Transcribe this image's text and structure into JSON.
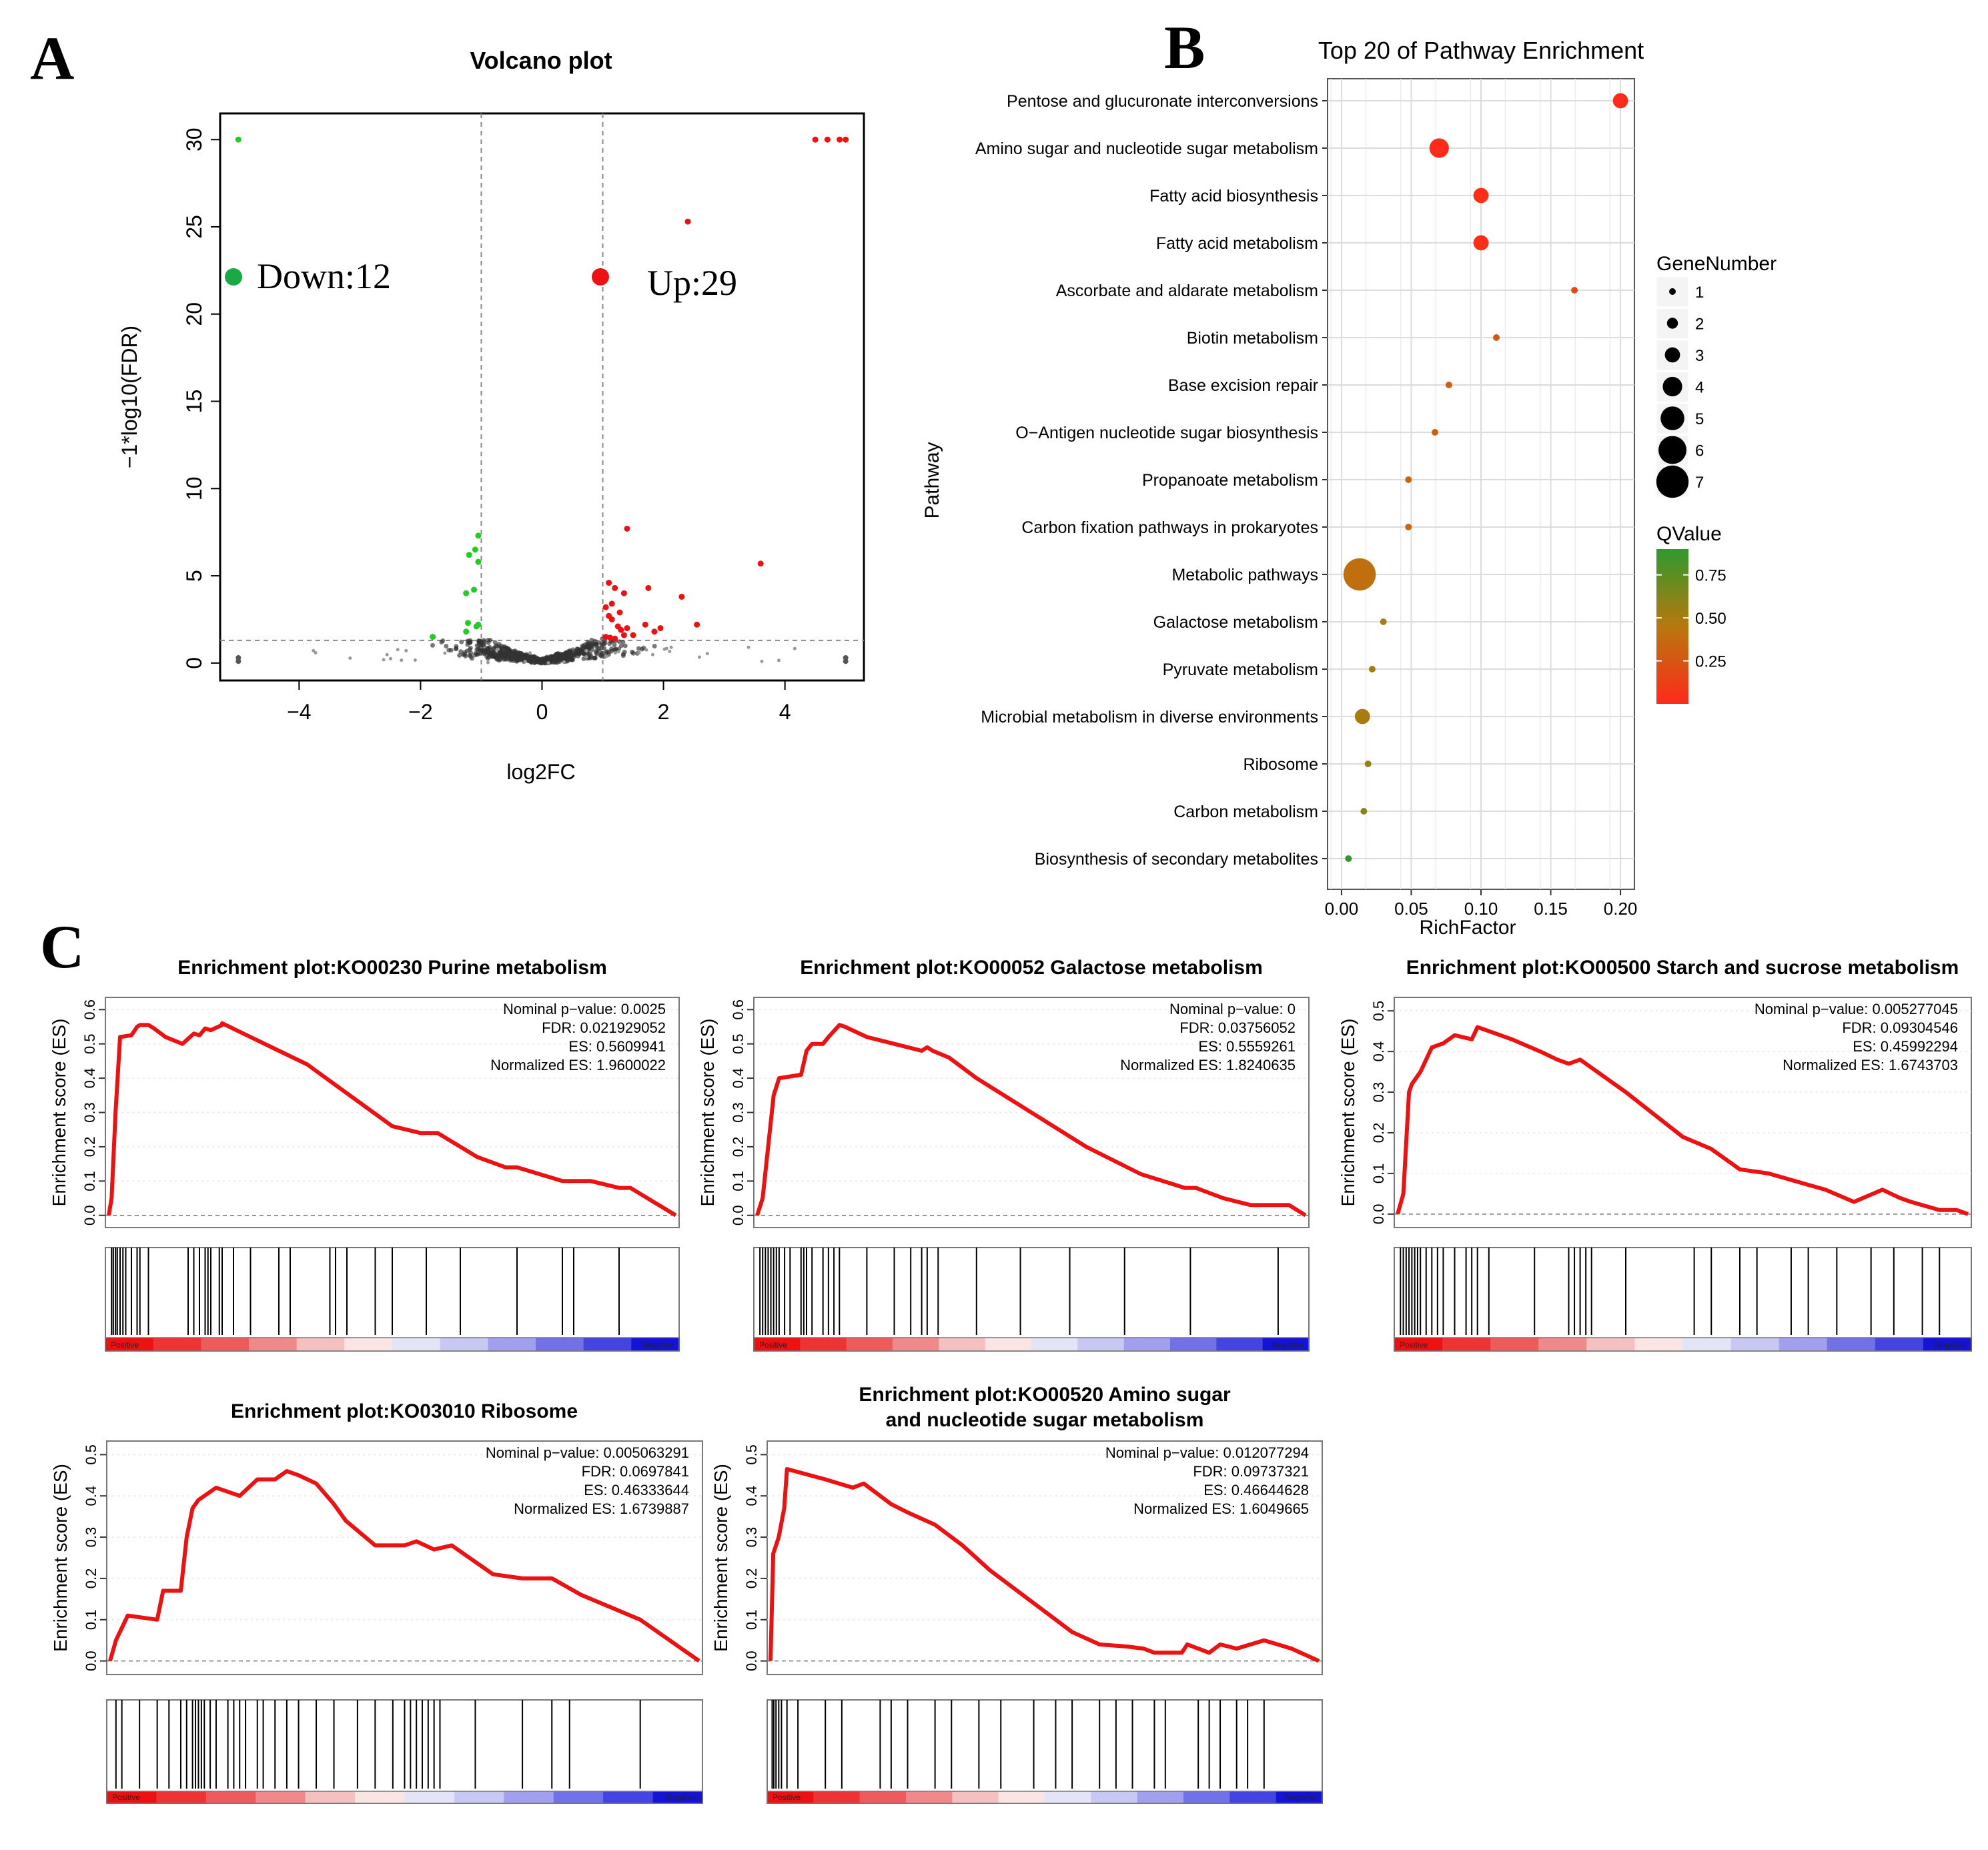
{
  "panels": {
    "A": {
      "letter": "A",
      "title": "Volcano plot",
      "xlabel": "log2FC",
      "ylabel": "−1*log10(FDR)",
      "xticks": [
        "−4",
        "−2",
        "0",
        "2",
        "4"
      ],
      "yticks": [
        "0",
        "5",
        "10",
        "15",
        "20",
        "25",
        "30"
      ],
      "legend": {
        "down": "Down:12",
        "up": "Up:29"
      }
    },
    "B": {
      "letter": "B",
      "title": "Top 20 of Pathway Enrichment",
      "xlabel": "RichFactor",
      "ylabel": "Pathway",
      "xticks": [
        "0.00",
        "0.05",
        "0.10",
        "0.15",
        "0.20"
      ],
      "size_legend_title": "GeneNumber",
      "size_legend_values": [
        "1",
        "2",
        "3",
        "4",
        "5",
        "6",
        "7"
      ],
      "color_legend_title": "QValue",
      "color_legend_ticks": [
        "0.75",
        "0.50",
        "0.25"
      ]
    },
    "C": {
      "letter": "C",
      "ylabel": "Enrichment score (ES)",
      "bar_left": "Positive",
      "bar_right": "Negative"
    }
  },
  "chart_data": [
    {
      "type": "scatter",
      "title": "Volcano plot",
      "xlabel": "log2FC",
      "ylabel": "−1*log10(FDR)",
      "xlim": [
        -5.3,
        5.3
      ],
      "ylim": [
        -1,
        31.5
      ],
      "thresholds": {
        "log2FC": [
          -1,
          1
        ],
        "neg_log10_fdr": 1.3
      },
      "colors": {
        "down": "#22cc22",
        "up": "#ee1111",
        "ns": "#333333",
        "threshold_line": "#888888"
      },
      "counts": {
        "down": 12,
        "up": 29
      },
      "series": [
        {
          "name": "Down",
          "x": [
            -5.0,
            -1.05,
            -1.1,
            -1.2,
            -1.05,
            -1.12,
            -1.25,
            -1.22,
            -1.05,
            -1.08,
            -1.25,
            -1.8
          ],
          "y": [
            30.0,
            7.3,
            6.5,
            6.2,
            5.8,
            4.2,
            4.0,
            2.3,
            2.2,
            2.1,
            1.8,
            1.5
          ]
        },
        {
          "name": "Up",
          "x": [
            4.5,
            4.7,
            4.9,
            5.0,
            2.4,
            1.4,
            3.6,
            1.1,
            1.2,
            1.35,
            1.75,
            2.3,
            1.05,
            1.1,
            1.15,
            1.25,
            1.3,
            1.35,
            1.7,
            1.85,
            2.55,
            1.05,
            1.12,
            1.2,
            1.15,
            1.28,
            1.4,
            1.5,
            1.95
          ],
          "y": [
            30.0,
            30.0,
            30.0,
            30.0,
            25.3,
            7.7,
            5.7,
            4.6,
            4.3,
            4.0,
            4.3,
            3.8,
            3.2,
            2.7,
            2.5,
            2.1,
            1.9,
            1.6,
            2.2,
            1.8,
            2.2,
            1.5,
            1.45,
            1.4,
            3.4,
            2.9,
            2.0,
            1.6,
            2.0
          ]
        }
      ]
    },
    {
      "type": "scatter",
      "title": "Top 20 of Pathway Enrichment",
      "xlabel": "RichFactor",
      "ylabel": "Pathway",
      "xlim": [
        -0.01,
        0.21
      ],
      "xticks": [
        0.0,
        0.05,
        0.1,
        0.15,
        0.2
      ],
      "qvalue_range": [
        0.0,
        0.9
      ],
      "categories": [
        "Pentose and glucuronate interconversions",
        "Amino sugar and nucleotide sugar metabolism",
        "Fatty acid biosynthesis",
        "Fatty acid metabolism",
        "Ascorbate and aldarate metabolism",
        "Biotin metabolism",
        "Base excision repair",
        "O−Antigen nucleotide sugar biosynthesis",
        "Propanoate metabolism",
        "Carbon fixation pathways in prokaryotes",
        "Metabolic pathways",
        "Galactose metabolism",
        "Pyruvate metabolism",
        "Microbial metabolism in diverse environments",
        "Ribosome",
        "Carbon metabolism",
        "Biosynthesis of secondary metabolites"
      ],
      "rich_factor": [
        0.2,
        0.07,
        0.1,
        0.1,
        0.167,
        0.111,
        0.077,
        0.067,
        0.048,
        0.048,
        0.013,
        0.03,
        0.022,
        0.015,
        0.019,
        0.016,
        0.005
      ],
      "gene_number": [
        3,
        4,
        3,
        3,
        1,
        1,
        1,
        1,
        1,
        1,
        7,
        1,
        1,
        3,
        1,
        1,
        1
      ],
      "qvalue": [
        0.01,
        0.01,
        0.02,
        0.02,
        0.2,
        0.25,
        0.3,
        0.3,
        0.35,
        0.35,
        0.4,
        0.5,
        0.5,
        0.5,
        0.55,
        0.6,
        0.9
      ],
      "size_legend": [
        1,
        2,
        3,
        4,
        5,
        6,
        7
      ],
      "color_scale": {
        "low": "#ff2a1a",
        "mid": "#b8780e",
        "high": "#2e9a2e"
      }
    },
    {
      "type": "line",
      "title": "Enrichment plot:KO00230 Purine metabolism",
      "ylabel": "Enrichment score (ES)",
      "ylim": [
        -0.02,
        0.62
      ],
      "yticks": [
        0.0,
        0.1,
        0.2,
        0.3,
        0.4,
        0.5,
        0.6
      ],
      "stats": [
        "Nominal p−value: 0.0025",
        "FDR: 0.021929052",
        "ES: 0.5609941",
        "Normalized ES: 1.9600022"
      ],
      "x": [
        0,
        0.005,
        0.012,
        0.02,
        0.04,
        0.05,
        0.055,
        0.07,
        0.08,
        0.1,
        0.13,
        0.15,
        0.16,
        0.17,
        0.18,
        0.2,
        0.2,
        0.25,
        0.3,
        0.35,
        0.4,
        0.5,
        0.55,
        0.58,
        0.65,
        0.7,
        0.72,
        0.8,
        0.83,
        0.85,
        0.9,
        0.92,
        1.0
      ],
      "y": [
        0,
        0.05,
        0.3,
        0.52,
        0.525,
        0.55,
        0.555,
        0.555,
        0.545,
        0.52,
        0.5,
        0.53,
        0.525,
        0.545,
        0.54,
        0.555,
        0.56,
        0.52,
        0.48,
        0.44,
        0.38,
        0.26,
        0.24,
        0.24,
        0.17,
        0.14,
        0.14,
        0.1,
        0.1,
        0.1,
        0.08,
        0.08,
        0.0
      ],
      "hits": [
        0.005,
        0.008,
        0.012,
        0.015,
        0.02,
        0.025,
        0.03,
        0.04,
        0.05,
        0.055,
        0.07,
        0.14,
        0.15,
        0.16,
        0.17,
        0.175,
        0.18,
        0.195,
        0.2,
        0.22,
        0.25,
        0.3,
        0.32,
        0.39,
        0.4,
        0.42,
        0.47,
        0.5,
        0.56,
        0.62,
        0.72,
        0.8,
        0.82,
        0.9
      ],
      "colors": {
        "curve": "#ee1111"
      }
    },
    {
      "type": "line",
      "title": "Enrichment plot:KO00052 Galactose metabolism",
      "ylabel": "Enrichment score (ES)",
      "ylim": [
        -0.02,
        0.62
      ],
      "yticks": [
        0.0,
        0.1,
        0.2,
        0.3,
        0.4,
        0.5,
        0.6
      ],
      "stats": [
        "Nominal p−value: 0",
        "FDR: 0.03756052",
        "ES: 0.5559261",
        "Normalized ES: 1.8240635"
      ],
      "x": [
        0,
        0.01,
        0.03,
        0.04,
        0.08,
        0.09,
        0.1,
        0.12,
        0.13,
        0.15,
        0.16,
        0.2,
        0.25,
        0.3,
        0.31,
        0.32,
        0.35,
        0.4,
        0.5,
        0.6,
        0.7,
        0.78,
        0.8,
        0.85,
        0.9,
        0.95,
        0.97,
        1.0
      ],
      "y": [
        0,
        0.05,
        0.35,
        0.4,
        0.41,
        0.48,
        0.5,
        0.5,
        0.52,
        0.555,
        0.55,
        0.52,
        0.5,
        0.48,
        0.49,
        0.48,
        0.46,
        0.4,
        0.3,
        0.2,
        0.12,
        0.08,
        0.08,
        0.05,
        0.03,
        0.03,
        0.03,
        0.0
      ],
      "hits": [
        0.005,
        0.01,
        0.015,
        0.02,
        0.025,
        0.03,
        0.035,
        0.04,
        0.05,
        0.06,
        0.08,
        0.085,
        0.09,
        0.1,
        0.12,
        0.13,
        0.14,
        0.15,
        0.2,
        0.25,
        0.28,
        0.3,
        0.31,
        0.33,
        0.4,
        0.48,
        0.57,
        0.67,
        0.79,
        0.95
      ],
      "colors": {
        "curve": "#ee1111"
      }
    },
    {
      "type": "line",
      "title": "Enrichment plot:KO00500 Starch and sucrose metabolism",
      "ylabel": "Enrichment score (ES)",
      "ylim": [
        -0.02,
        0.52
      ],
      "yticks": [
        0.0,
        0.1,
        0.2,
        0.3,
        0.4,
        0.5
      ],
      "stats": [
        "Nominal p−value: 0.005277045",
        "FDR: 0.09304546",
        "ES: 0.45992294",
        "Normalized ES: 1.6743703"
      ],
      "x": [
        0,
        0.01,
        0.02,
        0.025,
        0.04,
        0.06,
        0.08,
        0.1,
        0.13,
        0.14,
        0.16,
        0.2,
        0.25,
        0.28,
        0.3,
        0.32,
        0.35,
        0.4,
        0.5,
        0.55,
        0.6,
        0.65,
        0.7,
        0.75,
        0.8,
        0.85,
        0.88,
        0.9,
        0.95,
        0.98,
        1.0
      ],
      "y": [
        0,
        0.05,
        0.3,
        0.32,
        0.35,
        0.41,
        0.42,
        0.44,
        0.43,
        0.46,
        0.45,
        0.43,
        0.4,
        0.38,
        0.37,
        0.38,
        0.35,
        0.3,
        0.19,
        0.16,
        0.11,
        0.1,
        0.08,
        0.06,
        0.03,
        0.06,
        0.04,
        0.03,
        0.01,
        0.01,
        0.0
      ],
      "hits": [
        0.005,
        0.01,
        0.015,
        0.02,
        0.025,
        0.03,
        0.035,
        0.04,
        0.05,
        0.06,
        0.07,
        0.08,
        0.1,
        0.12,
        0.13,
        0.14,
        0.16,
        0.24,
        0.3,
        0.31,
        0.32,
        0.33,
        0.34,
        0.4,
        0.52,
        0.55,
        0.6,
        0.63,
        0.69,
        0.72,
        0.77,
        0.83,
        0.87,
        0.92,
        0.95
      ],
      "colors": {
        "curve": "#ee1111"
      }
    },
    {
      "type": "line",
      "title": "Enrichment plot:KO03010 Ribosome",
      "ylabel": "Enrichment score (ES)",
      "ylim": [
        -0.02,
        0.52
      ],
      "yticks": [
        0.0,
        0.1,
        0.2,
        0.3,
        0.4,
        0.5
      ],
      "stats": [
        "Nominal p−value: 0.005063291",
        "FDR: 0.0697841",
        "ES: 0.46333644",
        "Normalized ES: 1.6739887"
      ],
      "x": [
        0,
        0.01,
        0.03,
        0.08,
        0.09,
        0.12,
        0.13,
        0.14,
        0.15,
        0.18,
        0.22,
        0.25,
        0.28,
        0.3,
        0.32,
        0.35,
        0.38,
        0.4,
        0.45,
        0.5,
        0.52,
        0.55,
        0.58,
        0.6,
        0.65,
        0.7,
        0.75,
        0.8,
        0.85,
        0.9,
        0.95,
        1.0
      ],
      "y": [
        0,
        0.05,
        0.11,
        0.1,
        0.17,
        0.17,
        0.3,
        0.37,
        0.39,
        0.42,
        0.4,
        0.44,
        0.44,
        0.46,
        0.45,
        0.43,
        0.38,
        0.34,
        0.28,
        0.28,
        0.29,
        0.27,
        0.28,
        0.26,
        0.21,
        0.2,
        0.2,
        0.16,
        0.13,
        0.1,
        0.05,
        0.0
      ],
      "hits": [
        0.01,
        0.02,
        0.05,
        0.08,
        0.1,
        0.12,
        0.13,
        0.14,
        0.145,
        0.15,
        0.155,
        0.16,
        0.17,
        0.18,
        0.2,
        0.21,
        0.22,
        0.23,
        0.25,
        0.26,
        0.28,
        0.3,
        0.32,
        0.35,
        0.38,
        0.42,
        0.45,
        0.48,
        0.5,
        0.51,
        0.52,
        0.53,
        0.54,
        0.55,
        0.56,
        0.62,
        0.7,
        0.75,
        0.78,
        0.9
      ],
      "colors": {
        "curve": "#ee1111"
      }
    },
    {
      "type": "line",
      "title": "Enrichment plot:KO00520 Amino sugar\nand nucleotide sugar metabolism",
      "ylabel": "Enrichment score (ES)",
      "ylim": [
        -0.02,
        0.52
      ],
      "yticks": [
        0.0,
        0.1,
        0.2,
        0.3,
        0.4,
        0.5
      ],
      "stats": [
        "Nominal p−value: 0.012077294",
        "FDR: 0.09737321",
        "ES: 0.46644628",
        "Normalized ES: 1.6049665"
      ],
      "x": [
        0,
        0.005,
        0.015,
        0.025,
        0.03,
        0.1,
        0.15,
        0.17,
        0.2,
        0.22,
        0.25,
        0.3,
        0.35,
        0.4,
        0.5,
        0.55,
        0.6,
        0.65,
        0.68,
        0.7,
        0.75,
        0.76,
        0.8,
        0.82,
        0.85,
        0.9,
        0.95,
        1.0
      ],
      "y": [
        0,
        0.26,
        0.3,
        0.37,
        0.465,
        0.44,
        0.42,
        0.43,
        0.4,
        0.38,
        0.36,
        0.33,
        0.28,
        0.22,
        0.12,
        0.07,
        0.04,
        0.035,
        0.03,
        0.02,
        0.02,
        0.04,
        0.02,
        0.04,
        0.03,
        0.05,
        0.03,
        0.0
      ],
      "hits": [
        0.003,
        0.006,
        0.01,
        0.015,
        0.02,
        0.03,
        0.05,
        0.1,
        0.13,
        0.2,
        0.22,
        0.25,
        0.3,
        0.33,
        0.38,
        0.42,
        0.48,
        0.52,
        0.55,
        0.6,
        0.63,
        0.66,
        0.7,
        0.72,
        0.78,
        0.8,
        0.82,
        0.85,
        0.87,
        0.9
      ],
      "colors": {
        "curve": "#ee1111"
      }
    }
  ]
}
